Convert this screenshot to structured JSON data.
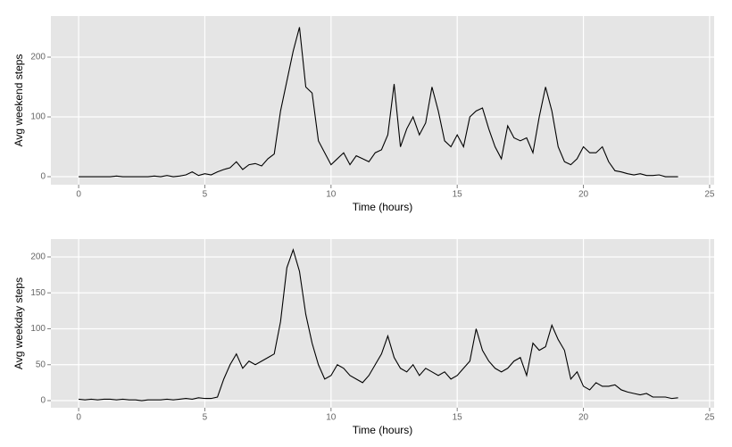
{
  "chart_data": [
    {
      "type": "line",
      "xlabel": "Time (hours)",
      "ylabel": "Avg weekend steps",
      "color": "#000000",
      "grid": true,
      "xlim": [
        -1.1,
        25.18
      ],
      "ylim": [
        -13.4,
        268.7
      ],
      "xticks": [
        0,
        5,
        10,
        15,
        20,
        25
      ],
      "yticks": [
        0,
        100,
        200
      ],
      "x": [
        0,
        0.25,
        0.5,
        0.75,
        1,
        1.25,
        1.5,
        1.75,
        2,
        2.25,
        2.5,
        2.75,
        3,
        3.25,
        3.5,
        3.75,
        4,
        4.25,
        4.5,
        4.75,
        5,
        5.25,
        5.5,
        5.75,
        6,
        6.25,
        6.5,
        6.75,
        7,
        7.25,
        7.5,
        7.75,
        8,
        8.25,
        8.5,
        8.75,
        9,
        9.25,
        9.5,
        9.75,
        10,
        10.25,
        10.5,
        10.75,
        11,
        11.25,
        11.5,
        11.75,
        12,
        12.25,
        12.5,
        12.75,
        13,
        13.25,
        13.5,
        13.75,
        14,
        14.25,
        14.5,
        14.75,
        15,
        15.25,
        15.5,
        15.75,
        16,
        16.25,
        16.5,
        16.75,
        17,
        17.25,
        17.5,
        17.75,
        18,
        18.25,
        18.5,
        18.75,
        19,
        19.25,
        19.5,
        19.75,
        20,
        20.25,
        20.5,
        20.75,
        21,
        21.25,
        21.5,
        21.75,
        22,
        22.25,
        22.5,
        22.75,
        23,
        23.25,
        23.5,
        23.75
      ],
      "values": [
        0,
        0,
        0,
        0,
        0,
        0,
        1,
        0,
        0,
        0,
        0,
        0,
        1,
        0,
        2,
        0,
        1,
        3,
        8,
        2,
        5,
        3,
        8,
        12,
        15,
        25,
        12,
        20,
        22,
        18,
        30,
        38,
        110,
        160,
        210,
        250,
        150,
        140,
        60,
        40,
        20,
        30,
        40,
        20,
        35,
        30,
        25,
        40,
        45,
        70,
        155,
        50,
        80,
        100,
        70,
        90,
        150,
        110,
        60,
        50,
        70,
        50,
        100,
        110,
        115,
        80,
        50,
        30,
        85,
        65,
        60,
        65,
        40,
        100,
        150,
        110,
        50,
        25,
        20,
        30,
        50,
        40,
        40,
        50,
        25,
        10,
        8,
        5,
        3,
        5,
        2,
        2,
        3,
        0,
        0,
        0
      ]
    },
    {
      "type": "line",
      "xlabel": "Time (hours)",
      "ylabel": "Avg weekday steps",
      "color": "#000000",
      "grid": true,
      "xlim": [
        -1.1,
        25.18
      ],
      "ylim": [
        -9.9,
        224.8
      ],
      "xticks": [
        0,
        5,
        10,
        15,
        20,
        25
      ],
      "yticks": [
        0,
        50,
        100,
        150,
        200
      ],
      "x": [
        0,
        0.25,
        0.5,
        0.75,
        1,
        1.25,
        1.5,
        1.75,
        2,
        2.25,
        2.5,
        2.75,
        3,
        3.25,
        3.5,
        3.75,
        4,
        4.25,
        4.5,
        4.75,
        5,
        5.25,
        5.5,
        5.75,
        6,
        6.25,
        6.5,
        6.75,
        7,
        7.25,
        7.5,
        7.75,
        8,
        8.25,
        8.5,
        8.75,
        9,
        9.25,
        9.5,
        9.75,
        10,
        10.25,
        10.5,
        10.75,
        11,
        11.25,
        11.5,
        11.75,
        12,
        12.25,
        12.5,
        12.75,
        13,
        13.25,
        13.5,
        13.75,
        14,
        14.25,
        14.5,
        14.75,
        15,
        15.25,
        15.5,
        15.75,
        16,
        16.25,
        16.5,
        16.75,
        17,
        17.25,
        17.5,
        17.75,
        18,
        18.25,
        18.5,
        18.75,
        19,
        19.25,
        19.5,
        19.75,
        20,
        20.25,
        20.5,
        20.75,
        21,
        21.25,
        21.5,
        21.75,
        22,
        22.25,
        22.5,
        22.75,
        23,
        23.25,
        23.5,
        23.75
      ],
      "values": [
        2,
        1,
        2,
        1,
        2,
        2,
        1,
        2,
        1,
        1,
        0,
        1,
        1,
        1,
        2,
        1,
        2,
        3,
        2,
        4,
        3,
        3,
        5,
        30,
        50,
        65,
        45,
        55,
        50,
        55,
        60,
        65,
        110,
        185,
        210,
        180,
        120,
        80,
        50,
        30,
        35,
        50,
        45,
        35,
        30,
        25,
        35,
        50,
        65,
        90,
        60,
        45,
        40,
        50,
        35,
        45,
        40,
        35,
        40,
        30,
        35,
        45,
        55,
        100,
        70,
        55,
        45,
        40,
        45,
        55,
        60,
        35,
        80,
        70,
        75,
        105,
        85,
        70,
        30,
        40,
        20,
        15,
        25,
        20,
        20,
        22,
        15,
        12,
        10,
        8,
        10,
        5,
        5,
        5,
        3,
        4
      ]
    }
  ]
}
